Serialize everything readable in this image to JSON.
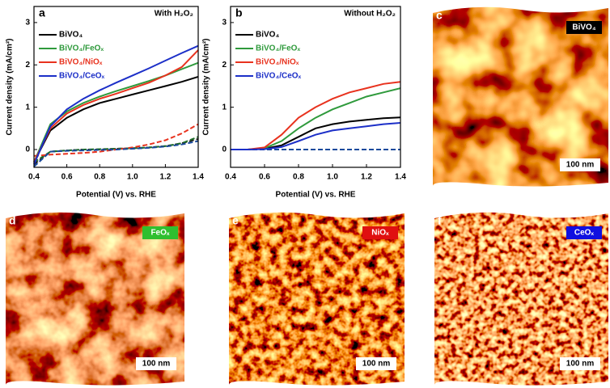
{
  "chart_data": [
    {
      "type": "line",
      "panel": "a",
      "annotation": "With H₂O₂",
      "xlabel": "Potential (V) vs. RHE",
      "ylabel": "Current density (mA/cm²)",
      "x": [
        0.4,
        0.5,
        0.6,
        0.7,
        0.8,
        0.9,
        1.0,
        1.1,
        1.2,
        1.3,
        1.4
      ],
      "xlim": [
        0.4,
        1.4
      ],
      "xticks": [
        0.4,
        0.6,
        0.8,
        {
          "value": 1,
          "label": "1.0"
        },
        1.2,
        1.4
      ],
      "ylim": [
        -0.42,
        3.38
      ],
      "yticks": [
        0,
        1,
        2,
        3
      ],
      "series": [
        {
          "name": "BiVO₄",
          "color": "#000000",
          "dark_color": "#1a1a1a",
          "values": [
            -0.3,
            0.45,
            0.75,
            0.95,
            1.1,
            1.2,
            1.3,
            1.4,
            1.5,
            1.6,
            1.72
          ],
          "dark_values": [
            -0.35,
            -0.05,
            -0.02,
            0,
            0,
            0.02,
            0.03,
            0.05,
            0.08,
            0.15,
            0.25
          ]
        },
        {
          "name": "BiVO₄/FeOₓ",
          "color": "#2f9a3c",
          "dark_color": "#1f6e2a",
          "values": [
            -0.3,
            0.6,
            0.9,
            1.1,
            1.25,
            1.38,
            1.5,
            1.62,
            1.75,
            1.9,
            2.05
          ],
          "dark_values": [
            -0.3,
            -0.05,
            -0.02,
            0,
            0.01,
            0.02,
            0.03,
            0.05,
            0.08,
            0.15,
            0.3
          ]
        },
        {
          "name": "BiVO₄/NiOₓ",
          "color": "#e8321e",
          "dark_color": "#e8321e",
          "values": [
            -0.3,
            0.5,
            0.85,
            1.05,
            1.2,
            1.32,
            1.45,
            1.58,
            1.75,
            1.95,
            2.35
          ],
          "dark_values": [
            -0.15,
            -0.12,
            -0.1,
            -0.08,
            -0.05,
            0,
            0.05,
            0.12,
            0.22,
            0.38,
            0.6
          ]
        },
        {
          "name": "BiVO₄/CeOₓ",
          "color": "#1c2fc8",
          "dark_color": "#1a4a9c",
          "values": [
            -0.35,
            0.55,
            0.95,
            1.2,
            1.4,
            1.58,
            1.75,
            1.92,
            2.1,
            2.28,
            2.45
          ],
          "dark_values": [
            -0.4,
            -0.05,
            -0.03,
            -0.02,
            -0.01,
            0,
            0.02,
            0.04,
            0.07,
            0.12,
            0.2
          ]
        }
      ]
    },
    {
      "type": "line",
      "panel": "b",
      "annotation": "Without H₂O₂",
      "xlabel": "Potential (V) vs. RHE",
      "ylabel": "Current density (mA/cm²)",
      "x": [
        0.4,
        0.5,
        0.6,
        0.7,
        0.8,
        0.9,
        1.0,
        1.1,
        1.2,
        1.3,
        1.4
      ],
      "xlim": [
        0.4,
        1.4
      ],
      "xticks": [
        0.4,
        0.6,
        0.8,
        {
          "value": 1,
          "label": "1.0"
        },
        1.2,
        1.4
      ],
      "ylim": [
        -0.42,
        3.38
      ],
      "yticks": [
        0,
        1,
        2,
        3
      ],
      "series": [
        {
          "name": "BiVO₄",
          "color": "#000000",
          "dark_color": "#1a1a1a",
          "values": [
            0,
            0,
            0.02,
            0.1,
            0.3,
            0.5,
            0.6,
            0.66,
            0.7,
            0.74,
            0.76
          ],
          "dark_values": [
            0,
            0,
            0,
            0,
            0,
            0,
            0,
            0,
            0,
            0,
            0
          ]
        },
        {
          "name": "BiVO₄/FeOₓ",
          "color": "#2f9a3c",
          "dark_color": "#1f6e2a",
          "values": [
            0,
            0,
            0.03,
            0.2,
            0.5,
            0.75,
            0.95,
            1.1,
            1.25,
            1.35,
            1.45
          ],
          "dark_values": [
            0,
            0,
            0,
            0,
            0,
            0,
            0,
            0,
            0,
            0,
            0
          ]
        },
        {
          "name": "BiVO₄/NiOₓ",
          "color": "#e8321e",
          "dark_color": "#e8321e",
          "values": [
            0,
            0,
            0.05,
            0.35,
            0.75,
            1.0,
            1.2,
            1.35,
            1.45,
            1.55,
            1.6
          ],
          "dark_values": [
            0,
            0,
            0,
            0,
            0,
            0,
            0,
            0,
            0,
            0,
            0
          ]
        },
        {
          "name": "BiVO₄/CeOₓ",
          "color": "#1c2fc8",
          "dark_color": "#1a4a9c",
          "values": [
            0,
            0,
            0.01,
            0.06,
            0.2,
            0.35,
            0.45,
            0.5,
            0.55,
            0.6,
            0.63
          ],
          "dark_values": [
            0,
            0,
            0,
            0,
            0,
            0,
            0,
            0,
            0,
            0,
            0
          ]
        }
      ]
    }
  ],
  "images": [
    {
      "panel": "c",
      "tag": "BiVO₄",
      "tag_color": "#000000",
      "scale": "100 nm"
    },
    {
      "panel": "d",
      "tag": "FeOₓ",
      "tag_color": "#2fbf2f",
      "scale": "100 nm"
    },
    {
      "panel": "e",
      "tag": "NiOₓ",
      "tag_color": "#e01010",
      "scale": "100 nm"
    },
    {
      "panel": "f",
      "tag": "CeOₓ",
      "tag_color": "#1010e0",
      "scale": "100 nm"
    }
  ]
}
